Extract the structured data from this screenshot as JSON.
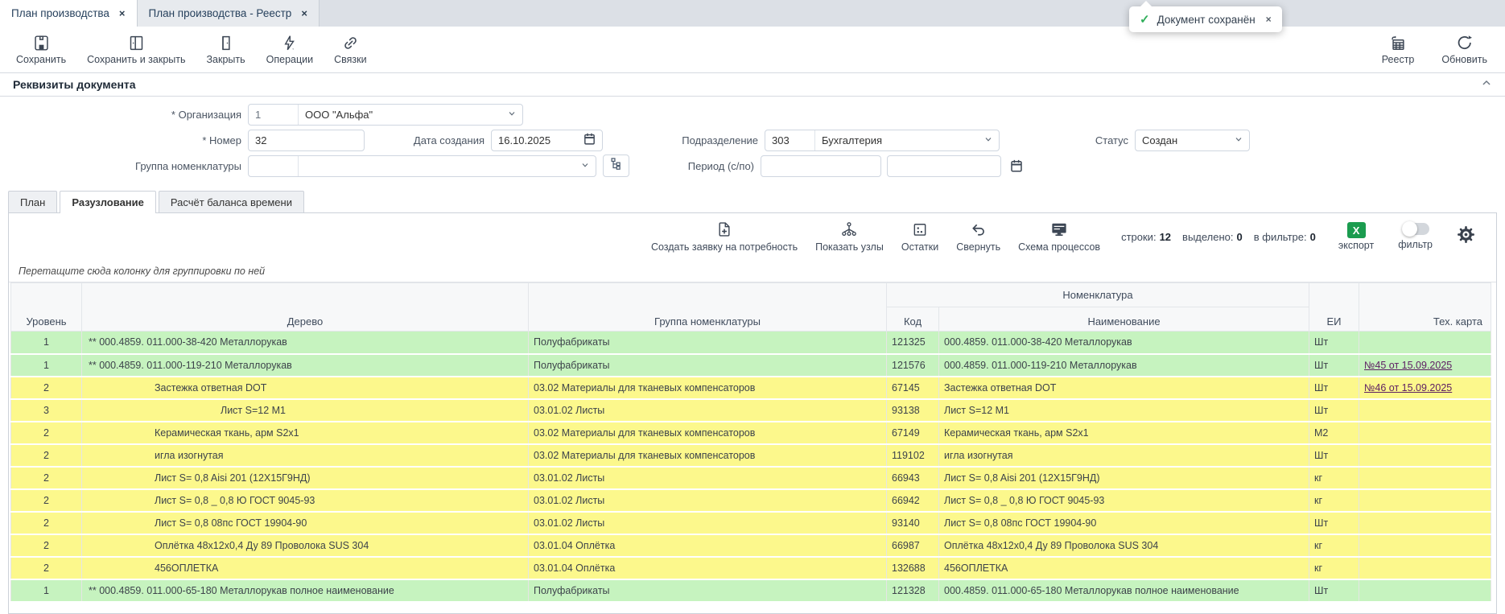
{
  "colors": {
    "green-row": "#c6f3bf",
    "yellow-row": "#fcf88c",
    "export-green": "#1b9c4f",
    "link-purple": "#5e2063",
    "check-green": "#2fae5a"
  },
  "window_tabs": [
    {
      "label": "План производства",
      "close": "×"
    },
    {
      "label": "План производства - Реестр",
      "close": "×"
    }
  ],
  "toast": {
    "icon": "check-icon",
    "check": "✓",
    "text": "Документ сохранён",
    "close": "×"
  },
  "toolbar": {
    "left": [
      {
        "icon": "save-icon",
        "label": "Сохранить"
      },
      {
        "icon": "save-close-icon",
        "label": "Сохранить и закрыть"
      },
      {
        "icon": "door-icon",
        "label": "Закрыть"
      },
      {
        "icon": "lightning-icon",
        "label": "Операции"
      },
      {
        "icon": "link-icon",
        "label": "Связки"
      }
    ],
    "right": [
      {
        "icon": "registry-icon",
        "label": "Реестр"
      },
      {
        "icon": "refresh-icon",
        "label": "Обновить"
      }
    ]
  },
  "section": {
    "title": "Реквизиты документа"
  },
  "form": {
    "org_label": "* Организация",
    "org_code": "1",
    "org_name": "ООО \"Альфа\"",
    "number_label": "* Номер",
    "number": "32",
    "date_label": "Дата создания",
    "date": "16.10.2025",
    "dept_label": "Подразделение",
    "dept_code": "303",
    "dept_name": "Бухгалтерия",
    "status_label": "Статус",
    "status": "Создан",
    "group_label": "Группа номенклатуры",
    "period_label": "Период (с/по)"
  },
  "subtabs": [
    {
      "label": "План",
      "active": false
    },
    {
      "label": "Разузлование",
      "active": true
    },
    {
      "label": "Расчёт баланса времени",
      "active": false
    }
  ],
  "table_toolbar": {
    "buttons": [
      {
        "icon": "file-plus-icon",
        "label": "Создать заявку на потребность"
      },
      {
        "icon": "nodes-icon",
        "label": "Показать узлы"
      },
      {
        "icon": "stock-icon",
        "label": "Остатки"
      },
      {
        "icon": "undo-icon",
        "label": "Свернуть"
      },
      {
        "icon": "monitor-icon",
        "label": "Схема процессов"
      }
    ],
    "counters": [
      {
        "label": "строки:",
        "value": "12"
      },
      {
        "label": "выделено:",
        "value": "0"
      },
      {
        "label": "в фильтре:",
        "value": "0"
      }
    ],
    "export_label": "экспорт",
    "export_glyph": "X",
    "filter_label": "фильтр"
  },
  "group_hint": "Перетащите сюда колонку для группировки по ней",
  "table": {
    "headers": {
      "level": "Уровень",
      "tree": "Дерево",
      "group": "Группа номенклатуры",
      "nomenclature": "Номенклатура",
      "code": "Код",
      "name": "Наименование",
      "unit": "ЕИ",
      "techcard": "Тех. карта"
    },
    "rows": [
      {
        "level": "1",
        "tree": "** 000.4859. 011.000-38-420 Металлорукав",
        "group": "Полуфабрикаты",
        "code": "121325",
        "name": "000.4859. 011.000-38-420 Металлорукав",
        "unit": "Шт",
        "techcard": "",
        "color": "green"
      },
      {
        "level": "1",
        "tree": "** 000.4859. 011.000-119-210 Металлорукав",
        "group": "Полуфабрикаты",
        "code": "121576",
        "name": "000.4859. 011.000-119-210 Металлорукав",
        "unit": "Шт",
        "techcard": "№45 от 15.09.2025",
        "color": "green"
      },
      {
        "level": "2",
        "tree": "Застежка ответная DOT",
        "group": "03.02 Материалы для тканевых компенсаторов",
        "code": "67145",
        "name": "Застежка ответная DOT",
        "unit": "Шт",
        "techcard": "№46 от 15.09.2025",
        "color": "yellow"
      },
      {
        "level": "3",
        "tree": "Лист S=12 М1",
        "group": "03.01.02 Листы",
        "code": "93138",
        "name": "Лист S=12 М1",
        "unit": "Шт",
        "techcard": "",
        "color": "yellow"
      },
      {
        "level": "2",
        "tree": "Керамическая ткань, арм S2х1",
        "group": "03.02 Материалы для тканевых компенсаторов",
        "code": "67149",
        "name": "Керамическая ткань, арм S2х1",
        "unit": "М2",
        "techcard": "",
        "color": "yellow"
      },
      {
        "level": "2",
        "tree": "игла изогнутая",
        "group": "03.02 Материалы для тканевых компенсаторов",
        "code": "119102",
        "name": "игла изогнутая",
        "unit": "Шт",
        "techcard": "",
        "color": "yellow"
      },
      {
        "level": "2",
        "tree": "Лист S= 0,8 Aisi 201 (12Х15Г9НД)",
        "group": "03.01.02 Листы",
        "code": "66943",
        "name": "Лист S= 0,8 Aisi 201 (12Х15Г9НД)",
        "unit": "кг",
        "techcard": "",
        "color": "yellow"
      },
      {
        "level": "2",
        "tree": "Лист S= 0,8 _ 0,8 Ю ГОСТ 9045-93",
        "group": "03.01.02 Листы",
        "code": "66942",
        "name": "Лист S= 0,8 _ 0,8 Ю ГОСТ 9045-93",
        "unit": "кг",
        "techcard": "",
        "color": "yellow"
      },
      {
        "level": "2",
        "tree": "Лист S= 0,8 08пс ГОСТ 19904-90",
        "group": "03.01.02 Листы",
        "code": "93140",
        "name": "Лист S= 0,8 08пс ГОСТ 19904-90",
        "unit": "Шт",
        "techcard": "",
        "color": "yellow"
      },
      {
        "level": "2",
        "tree": "Оплётка 48х12х0,4 Ду 89 Проволока SUS 304",
        "group": "03.01.04 Оплётка",
        "code": "66987",
        "name": "Оплётка 48х12х0,4 Ду 89 Проволока SUS 304",
        "unit": "кг",
        "techcard": "",
        "color": "yellow"
      },
      {
        "level": "2",
        "tree": "456ОПЛЕТКА",
        "group": "03.01.04 Оплётка",
        "code": "132688",
        "name": "456ОПЛЕТКА",
        "unit": "кг",
        "techcard": "",
        "color": "yellow"
      },
      {
        "level": "1",
        "tree": "** 000.4859. 011.000-65-180 Металлорукав полное наименование",
        "group": "Полуфабрикаты",
        "code": "121328",
        "name": "000.4859. 011.000-65-180 Металлорукав полное наименование",
        "unit": "Шт",
        "techcard": "",
        "color": "green"
      }
    ]
  }
}
